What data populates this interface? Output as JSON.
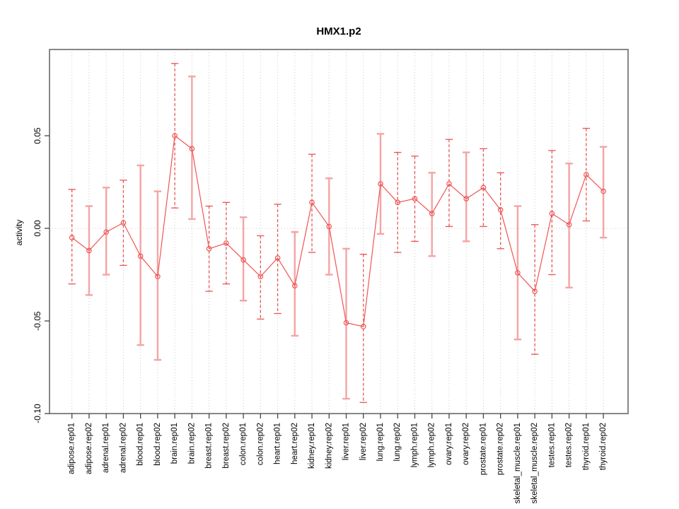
{
  "chart_data": {
    "type": "line",
    "subtype": "points-with-error-bars",
    "title": "HMX1.p2",
    "xlabel": "",
    "ylabel": "activity",
    "ylim": [
      -0.1005,
      0.0966
    ],
    "ytick_values": [
      0.05,
      0.0,
      -0.05,
      -0.1
    ],
    "ytick_labels": [
      "0.05",
      "0.00",
      "-0.05",
      "-0.10"
    ],
    "grid": "vertical-dotted-per-category-plus-zero-line",
    "legend": "none",
    "categories": [
      "adipose.rep01",
      "adipose.rep02",
      "adrenal.rep01",
      "adrenal.rep02",
      "blood.rep01",
      "blood.rep02",
      "brain.rep01",
      "brain.rep02",
      "breast.rep01",
      "breast.rep02",
      "colon.rep01",
      "colon.rep02",
      "heart.rep01",
      "heart.rep02",
      "kidney.rep01",
      "kidney.rep02",
      "liver.rep01",
      "liver.rep02",
      "lung.rep01",
      "lung.rep02",
      "lymph.rep01",
      "lymph.rep02",
      "ovary.rep01",
      "ovary.rep02",
      "prostate.rep01",
      "prostate.rep02",
      "skeletal_muscle.rep01",
      "skeletal_muscle.rep02",
      "testes.rep01",
      "testes.rep02",
      "thyroid.rep01",
      "thyroid.rep02"
    ],
    "series": [
      {
        "name": "activity",
        "values": [
          -0.005,
          -0.012,
          -0.002,
          0.003,
          -0.015,
          -0.026,
          0.05,
          0.043,
          -0.011,
          -0.008,
          -0.017,
          -0.026,
          -0.016,
          -0.031,
          0.014,
          0.001,
          -0.051,
          -0.053,
          0.024,
          0.014,
          0.016,
          0.008,
          0.024,
          0.016,
          0.022,
          0.01,
          -0.024,
          -0.034,
          0.008,
          0.002,
          0.029,
          0.02
        ],
        "err_low": [
          -0.03,
          -0.036,
          -0.025,
          -0.02,
          -0.063,
          -0.071,
          0.011,
          0.005,
          -0.034,
          -0.03,
          -0.039,
          -0.049,
          -0.046,
          -0.058,
          -0.013,
          -0.025,
          -0.092,
          -0.094,
          -0.003,
          -0.013,
          -0.007,
          -0.015,
          0.001,
          -0.007,
          0.001,
          -0.011,
          -0.06,
          -0.068,
          -0.025,
          -0.032,
          0.004,
          -0.005
        ],
        "err_high": [
          0.021,
          0.012,
          0.022,
          0.026,
          0.034,
          0.02,
          0.089,
          0.082,
          0.012,
          0.014,
          0.006,
          -0.004,
          0.013,
          -0.002,
          0.04,
          0.027,
          -0.011,
          -0.014,
          0.051,
          0.041,
          0.039,
          0.03,
          0.048,
          0.041,
          0.043,
          0.03,
          0.012,
          0.002,
          0.042,
          0.035,
          0.054,
          0.044
        ],
        "bar_styles": [
          "red",
          "pink",
          "pink",
          "red",
          "pink",
          "pink",
          "red",
          "pink",
          "red",
          "red",
          "pink",
          "red",
          "red",
          "pink",
          "red",
          "pink",
          "pink",
          "red",
          "pink",
          "red",
          "red",
          "pink",
          "red",
          "pink",
          "red",
          "red",
          "pink",
          "red",
          "red",
          "pink",
          "red",
          "pink"
        ]
      }
    ],
    "colors": {
      "point_and_line": "#f05454",
      "error_bar_pink": "#f4a4a4",
      "error_bar_red": "#ea5454",
      "gridline": "#c9c9c9",
      "zero_line": "#cccccc",
      "plot_border": "#7a7a7a",
      "text": "#000000",
      "background": "#ffffff"
    }
  }
}
